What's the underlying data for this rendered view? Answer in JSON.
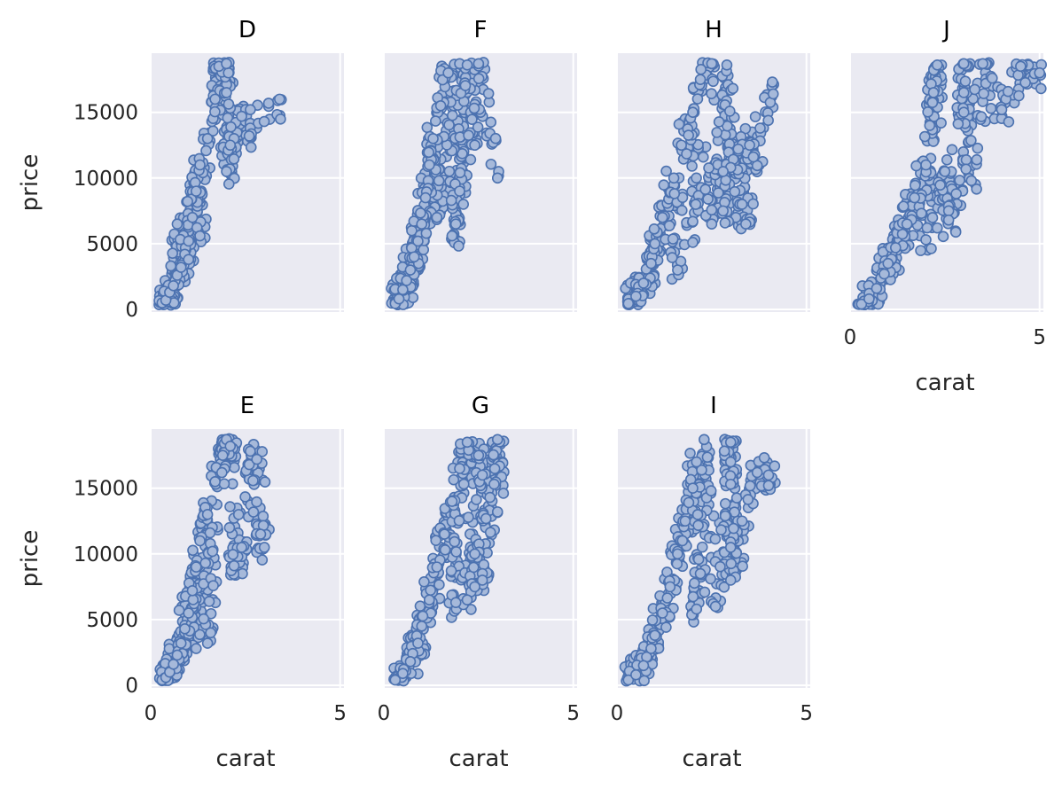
{
  "chart_data": {
    "type": "scatter",
    "layout": "facet grid, wrap 4 columns",
    "facet_variable": "color",
    "xlabel": "carat",
    "ylabel": "price",
    "xlim": [
      0,
      5.1
    ],
    "ylim": [
      -200,
      19500
    ],
    "xticks": [
      0,
      5
    ],
    "yticks": [
      0,
      5000,
      10000,
      15000
    ],
    "grid": true,
    "colors": {
      "background": "#eaeaf2",
      "marker_face": "#a6b9da",
      "marker_edge": "#4c72b0",
      "gridline": "#ffffff"
    },
    "facets": [
      {
        "title": "D",
        "points": [
          [
            0.3,
            500
          ],
          [
            0.4,
            700
          ],
          [
            0.5,
            1300
          ],
          [
            0.6,
            1800
          ],
          [
            0.7,
            2600
          ],
          [
            0.8,
            3200
          ],
          [
            0.9,
            4200
          ],
          [
            1.0,
            5200
          ],
          [
            1.1,
            7000
          ],
          [
            1.2,
            9000
          ],
          [
            1.3,
            11000
          ],
          [
            1.5,
            13000
          ],
          [
            1.7,
            16000
          ],
          [
            1.8,
            18500
          ],
          [
            2.0,
            18700
          ],
          [
            2.0,
            16500
          ],
          [
            2.2,
            13000
          ],
          [
            2.1,
            12500
          ],
          [
            2.4,
            14700
          ],
          [
            2.6,
            13200
          ],
          [
            3.4,
            16000
          ],
          [
            1.0,
            3800
          ],
          [
            1.3,
            5600
          ],
          [
            0.7,
            6500
          ],
          [
            2.0,
            10500
          ]
        ]
      },
      {
        "title": "F",
        "points": [
          [
            0.3,
            450
          ],
          [
            0.4,
            800
          ],
          [
            0.5,
            1500
          ],
          [
            0.6,
            2200
          ],
          [
            0.7,
            3000
          ],
          [
            0.8,
            4000
          ],
          [
            0.9,
            5200
          ],
          [
            1.0,
            6500
          ],
          [
            1.1,
            8500
          ],
          [
            1.2,
            11000
          ],
          [
            1.3,
            13000
          ],
          [
            1.5,
            15500
          ],
          [
            1.7,
            18000
          ],
          [
            2.0,
            18700
          ],
          [
            2.2,
            18600
          ],
          [
            2.5,
            18700
          ],
          [
            2.4,
            12500
          ],
          [
            3.0,
            10000
          ],
          [
            2.0,
            9000
          ],
          [
            1.9,
            6500
          ],
          [
            1.8,
            5600
          ],
          [
            1.4,
            7000
          ]
        ]
      },
      {
        "title": "H",
        "points": [
          [
            0.3,
            450
          ],
          [
            0.5,
            1000
          ],
          [
            0.7,
            2000
          ],
          [
            0.9,
            3500
          ],
          [
            1.0,
            5000
          ],
          [
            1.2,
            7000
          ],
          [
            1.5,
            10000
          ],
          [
            1.7,
            12500
          ],
          [
            2.0,
            15000
          ],
          [
            2.2,
            17500
          ],
          [
            2.5,
            18700
          ],
          [
            2.9,
            18600
          ],
          [
            4.1,
            17300
          ],
          [
            3.2,
            12200
          ],
          [
            3.5,
            12500
          ],
          [
            3.6,
            11600
          ],
          [
            3.0,
            10800
          ],
          [
            2.8,
            10500
          ],
          [
            3.3,
            8000
          ],
          [
            3.4,
            6500
          ],
          [
            2.5,
            6500
          ],
          [
            2.0,
            5100
          ],
          [
            2.8,
            7500
          ],
          [
            1.6,
            3000
          ]
        ]
      },
      {
        "title": "J",
        "points": [
          [
            0.3,
            400
          ],
          [
            0.5,
            800
          ],
          [
            0.7,
            1600
          ],
          [
            0.9,
            2700
          ],
          [
            1.0,
            3500
          ],
          [
            1.2,
            4700
          ],
          [
            1.5,
            6500
          ],
          [
            1.7,
            8500
          ],
          [
            2.0,
            11000
          ],
          [
            2.1,
            14000
          ],
          [
            2.2,
            16500
          ],
          [
            2.3,
            18600
          ],
          [
            3.0,
            18700
          ],
          [
            3.5,
            18700
          ],
          [
            4.5,
            18500
          ],
          [
            5.0,
            18000
          ],
          [
            4.0,
            15200
          ],
          [
            3.0,
            16500
          ],
          [
            3.0,
            15000
          ],
          [
            3.2,
            9800
          ],
          [
            2.8,
            8800
          ],
          [
            2.6,
            6800
          ],
          [
            2.0,
            5300
          ],
          [
            2.3,
            6200
          ],
          [
            2.5,
            10500
          ]
        ]
      },
      {
        "title": "E",
        "points": [
          [
            0.3,
            400
          ],
          [
            0.4,
            600
          ],
          [
            0.5,
            1000
          ],
          [
            0.6,
            1600
          ],
          [
            0.7,
            2300
          ],
          [
            0.8,
            3200
          ],
          [
            0.9,
            4300
          ],
          [
            1.0,
            5500
          ],
          [
            1.1,
            7200
          ],
          [
            1.2,
            9000
          ],
          [
            1.3,
            11000
          ],
          [
            1.5,
            13000
          ],
          [
            1.7,
            15500
          ],
          [
            1.9,
            17500
          ],
          [
            2.0,
            18700
          ],
          [
            2.1,
            18200
          ],
          [
            2.6,
            16800
          ],
          [
            2.8,
            17200
          ],
          [
            2.9,
            11500
          ],
          [
            3.0,
            10500
          ],
          [
            2.4,
            10500
          ],
          [
            2.2,
            9100
          ],
          [
            1.5,
            3200
          ],
          [
            1.2,
            2800
          ]
        ]
      },
      {
        "title": "G",
        "points": [
          [
            0.3,
            400
          ],
          [
            0.5,
            900
          ],
          [
            0.7,
            1800
          ],
          [
            0.9,
            3200
          ],
          [
            1.0,
            4500
          ],
          [
            1.2,
            6500
          ],
          [
            1.4,
            9000
          ],
          [
            1.6,
            11500
          ],
          [
            1.8,
            14000
          ],
          [
            2.0,
            16500
          ],
          [
            2.2,
            18500
          ],
          [
            2.5,
            17500
          ],
          [
            3.0,
            18700
          ],
          [
            2.6,
            16000
          ],
          [
            2.8,
            14300
          ],
          [
            3.0,
            13200
          ],
          [
            2.4,
            10000
          ],
          [
            2.6,
            8500
          ],
          [
            2.6,
            8000
          ],
          [
            2.2,
            6500
          ],
          [
            1.9,
            6300
          ],
          [
            2.4,
            7500
          ]
        ]
      },
      {
        "title": "I",
        "points": [
          [
            0.3,
            400
          ],
          [
            0.5,
            800
          ],
          [
            0.7,
            1500
          ],
          [
            0.9,
            2800
          ],
          [
            1.0,
            3800
          ],
          [
            1.2,
            5500
          ],
          [
            1.4,
            7500
          ],
          [
            1.6,
            10000
          ],
          [
            1.8,
            12500
          ],
          [
            2.0,
            15000
          ],
          [
            2.1,
            17000
          ],
          [
            2.3,
            18700
          ],
          [
            3.0,
            18500
          ],
          [
            3.0,
            17000
          ],
          [
            3.0,
            15300
          ],
          [
            3.7,
            16200
          ],
          [
            4.0,
            16000
          ],
          [
            4.0,
            15200
          ],
          [
            3.3,
            12500
          ],
          [
            3.0,
            10900
          ],
          [
            3.0,
            10500
          ],
          [
            3.0,
            8000
          ],
          [
            2.2,
            8500
          ],
          [
            2.1,
            5800
          ],
          [
            2.6,
            6000
          ]
        ]
      }
    ]
  }
}
